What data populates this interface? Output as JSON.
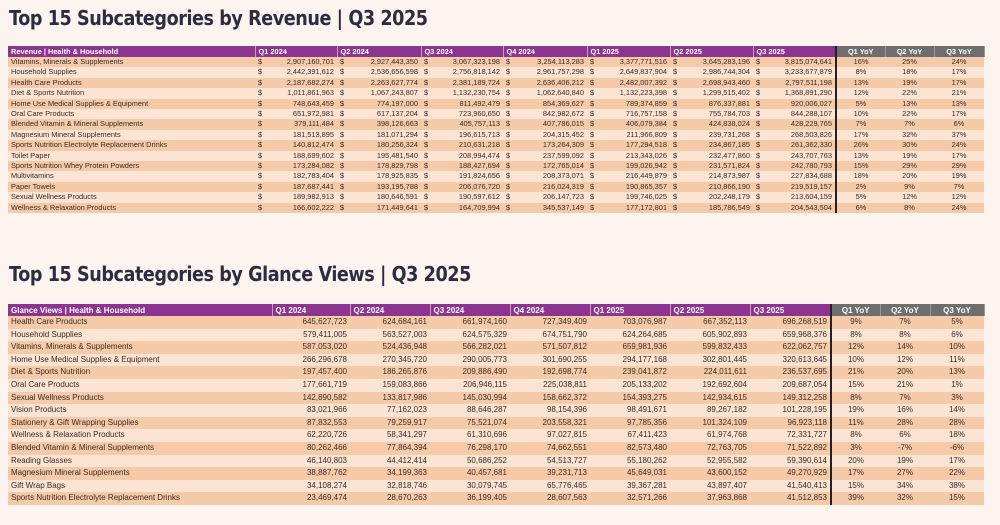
{
  "revenue_table": {
    "title": "Top 15 Subcategories by Revenue | Q3 2025",
    "headers": [
      "Revenue | Health & Household",
      "Q1 2024",
      "Q2 2024",
      "Q3 2024",
      "Q4 2024",
      "Q1 2025",
      "Q2 2025",
      "Q3 2025",
      "Q1 YoY",
      "Q2 YoY",
      "Q3 YoY"
    ],
    "currency_symbol": "$",
    "rows": [
      [
        "Vitamins, Minerals & Supplements",
        "2,907,160,701",
        "2,927,443,350",
        "3,067,323,198",
        "3,254,113,283",
        "3,377,771,516",
        "3,645,283,196",
        "3,815,074,641",
        "16%",
        "25%",
        "24%"
      ],
      [
        "Household Supplies",
        "2,442,391,612",
        "2,536,656,598",
        "2,756,818,142",
        "2,961,757,298",
        "2,649,837,904",
        "2,986,744,304",
        "3,233,677,879",
        "8%",
        "18%",
        "17%"
      ],
      [
        "Health Care Products",
        "2,187,682,274",
        "2,263,627,774",
        "2,381,189,724",
        "2,636,406,212",
        "2,482,007,392",
        "2,698,943,460",
        "2,797,511,198",
        "13%",
        "19%",
        "17%"
      ],
      [
        "Diet & Sports Nutrition",
        "1,011,861,963",
        "1,067,243,807",
        "1,132,230,754",
        "1,062,640,840",
        "1,132,223,398",
        "1,299,515,402",
        "1,368,891,290",
        "12%",
        "22%",
        "21%"
      ],
      [
        "Home Use Medical Supplies & Equipment",
        "748,643,459",
        "774,197,000",
        "811,492,479",
        "854,369,627",
        "789,374,859",
        "876,337,881",
        "920,006,027",
        "5%",
        "13%",
        "13%"
      ],
      [
        "Oral Care Products",
        "651,972,981",
        "617,137,204",
        "723,960,650",
        "842,982,672",
        "716,757,158",
        "755,784,703",
        "844,288,107",
        "10%",
        "22%",
        "17%"
      ],
      [
        "Blended Vitamin & Mineral Supplements",
        "379,111,484",
        "398,126,663",
        "405,757,113",
        "407,786,015",
        "406,079,384",
        "424,838,024",
        "428,229,765",
        "7%",
        "7%",
        "6%"
      ],
      [
        "Magnesium Mineral Supplements",
        "181,513,895",
        "181,071,294",
        "196,615,713",
        "204,315,452",
        "211,966,809",
        "239,731,268",
        "268,503,826",
        "17%",
        "32%",
        "37%"
      ],
      [
        "Sports Nutrition Electrolyte Replacement Drinks",
        "140,812,474",
        "180,256,324",
        "210,631,218",
        "173,264,309",
        "177,294,518",
        "234,867,185",
        "261,362,330",
        "26%",
        "30%",
        "24%"
      ],
      [
        "Toilet Paper",
        "188,699,602",
        "195,481,540",
        "208,994,474",
        "237,599,092",
        "213,343,026",
        "232,477,860",
        "243,707,763",
        "13%",
        "19%",
        "17%"
      ],
      [
        "Sports Nutrition Whey Protein Powders",
        "173,284,082",
        "178,829,798",
        "188,427,694",
        "172,765,014",
        "199,026,942",
        "231,571,824",
        "242,780,793",
        "15%",
        "29%",
        "29%"
      ],
      [
        "Multivitamins",
        "182,783,404",
        "178,925,835",
        "191,824,656",
        "208,373,071",
        "216,449,879",
        "214,873,987",
        "227,834,688",
        "18%",
        "20%",
        "19%"
      ],
      [
        "Paper Towels",
        "187,687,441",
        "193,195,788",
        "206,076,720",
        "216,024,319",
        "190,865,357",
        "210,866,190",
        "219,519,157",
        "2%",
        "9%",
        "7%"
      ],
      [
        "Sexual Wellness Products",
        "189,982,913",
        "180,646,591",
        "190,597,612",
        "206,147,723",
        "199,746,025",
        "202,248,179",
        "213,604,159",
        "5%",
        "12%",
        "12%"
      ],
      [
        "Wellness & Relaxation Products",
        "166,602,222",
        "171,449,641",
        "164,709,994",
        "345,537,149",
        "177,172,801",
        "185,786,549",
        "204,543,504",
        "6%",
        "8%",
        "24%"
      ]
    ]
  },
  "glance_table": {
    "title": "Top 15 Subcategories by Glance Views | Q3 2025",
    "headers": [
      "Glance Views | Health & Household",
      "Q1 2024",
      "Q2 2024",
      "Q3 2024",
      "Q4 2024",
      "Q1 2025",
      "Q2 2025",
      "Q3 2025",
      "Q1 YoY",
      "Q2 YoY",
      "Q3 YoY"
    ],
    "rows": [
      [
        "Health Care Products",
        "645,627,723",
        "624,684,161",
        "661,974,160",
        "727,349,409",
        "703,076,987",
        "667,352,113",
        "696,268,519",
        "9%",
        "7%",
        "5%"
      ],
      [
        "Household Supplies",
        "579,411,005",
        "563,527,003",
        "624,575,329",
        "674,751,790",
        "624,264,685",
        "605,902,893",
        "659,968,376",
        "8%",
        "8%",
        "6%"
      ],
      [
        "Vitamins, Minerals & Supplements",
        "587,053,020",
        "524,436,948",
        "566,282,021",
        "571,507,812",
        "659,981,936",
        "599,832,433",
        "622,062,757",
        "12%",
        "14%",
        "10%"
      ],
      [
        "Home Use Medical Supplies & Equipment",
        "266,296,678",
        "270,345,720",
        "290,005,773",
        "301,690,255",
        "294,177,168",
        "302,801,445",
        "320,613,645",
        "10%",
        "12%",
        "11%"
      ],
      [
        "Diet & Sports Nutrition",
        "197,457,400",
        "186,265,876",
        "209,886,490",
        "192,698,774",
        "239,041,872",
        "224,011,611",
        "236,537,695",
        "21%",
        "20%",
        "13%"
      ],
      [
        "Oral Care Products",
        "177,661,719",
        "159,083,866",
        "206,946,115",
        "225,038,811",
        "205,133,202",
        "192,692,604",
        "209,687,054",
        "15%",
        "21%",
        "1%"
      ],
      [
        "Sexual Wellness Products",
        "142,890,582",
        "133,817,986",
        "145,030,994",
        "158,662,372",
        "154,393,275",
        "142,934,615",
        "149,312,258",
        "8%",
        "7%",
        "3%"
      ],
      [
        "Vision Products",
        "83,021,966",
        "77,162,023",
        "88,646,287",
        "98,154,396",
        "98,491,671",
        "89,267,182",
        "101,228,195",
        "19%",
        "16%",
        "14%"
      ],
      [
        "Stationery & Gift Wrapping Supplies",
        "87,832,553",
        "79,259,917",
        "75,521,074",
        "203,558,321",
        "97,785,356",
        "101,324,109",
        "96,923,118",
        "11%",
        "28%",
        "28%"
      ],
      [
        "Wellness & Relaxation Products",
        "62,220,726",
        "58,341,297",
        "61,310,696",
        "97,027,815",
        "67,411,423",
        "61,974,768",
        "72,331,727",
        "8%",
        "6%",
        "18%"
      ],
      [
        "Blended Vitamin & Mineral Supplements",
        "80,262,466",
        "77,864,394",
        "76,298,170",
        "74,662,551",
        "82,573,480",
        "72,763,705",
        "71,522,892",
        "3%",
        "-7%",
        "-6%"
      ],
      [
        "Reading Glasses",
        "46,140,803",
        "44,412,414",
        "50,686,252",
        "54,513,727",
        "55,180,262",
        "52,955,582",
        "59,390,614",
        "20%",
        "19%",
        "17%"
      ],
      [
        "Magnesium Mineral Supplements",
        "38,887,762",
        "34,199,363",
        "40,457,681",
        "39,231,713",
        "45,649,031",
        "43,600,152",
        "49,270,929",
        "17%",
        "27%",
        "22%"
      ],
      [
        "Gift Wrap Bags",
        "34,108,274",
        "32,818,746",
        "30,079,745",
        "65,776,465",
        "39,367,281",
        "43,897,407",
        "41,540,413",
        "15%",
        "34%",
        "38%"
      ],
      [
        "Sports Nutrition Electrolyte Replacement Drinks",
        "23,469,474",
        "28,670,263",
        "36,199,405",
        "28,607,563",
        "32,571,266",
        "37,963,868",
        "41,512,853",
        "39%",
        "32%",
        "15%"
      ]
    ]
  },
  "colors": {
    "header_purple": "#8b3590",
    "header_grey": "#6e6e6e",
    "row_dark": "#f5caa9",
    "row_light": "#fbe4d4",
    "title": "#2b2d42"
  }
}
